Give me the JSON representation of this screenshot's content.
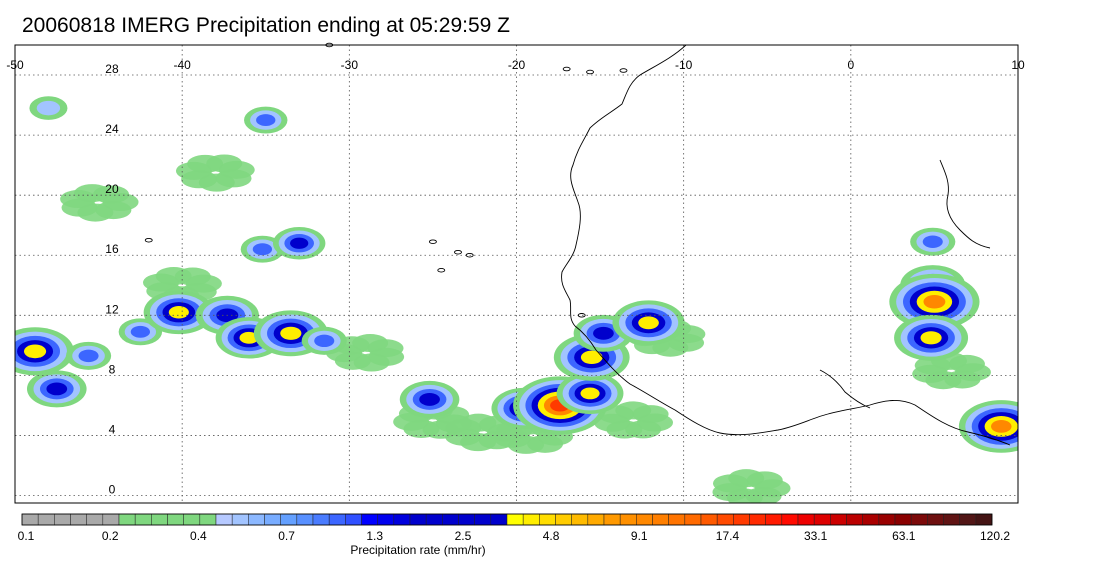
{
  "title": "20060818 IMERG Precipitation ending at 05:29:59 Z",
  "map": {
    "lon_range": [
      -50,
      10
    ],
    "lat_range": [
      -0.5,
      30
    ],
    "lon_ticks": [
      -50,
      -40,
      -30,
      -20,
      -10,
      0,
      10
    ],
    "lat_ticks": [
      0,
      4,
      8,
      12,
      16,
      20,
      24,
      28
    ],
    "grid": true,
    "coastline_color": "#000000",
    "rain_cells": [
      {
        "lon": -48.8,
        "lat": 9.6,
        "intensity": 3.2
      },
      {
        "lon": -47.5,
        "lat": 7.1,
        "intensity": 2.2
      },
      {
        "lon": -45.6,
        "lat": 9.3,
        "intensity": 1.4
      },
      {
        "lon": -42.5,
        "lat": 10.9,
        "intensity": 1.3
      },
      {
        "lon": -40.2,
        "lat": 12.2,
        "intensity": 2.8
      },
      {
        "lon": -37.3,
        "lat": 12.0,
        "intensity": 2.4
      },
      {
        "lon": -36.0,
        "lat": 10.5,
        "intensity": 2.6
      },
      {
        "lon": -33.5,
        "lat": 10.8,
        "intensity": 3.0
      },
      {
        "lon": -31.5,
        "lat": 10.3,
        "intensity": 1.4
      },
      {
        "lon": -35.2,
        "lat": 16.4,
        "intensity": 1.3
      },
      {
        "lon": -33.0,
        "lat": 16.8,
        "intensity": 1.8
      },
      {
        "lon": -35.0,
        "lat": 25.0,
        "intensity": 1.3
      },
      {
        "lon": -48.0,
        "lat": 25.8,
        "intensity": 1.0
      },
      {
        "lon": -25.2,
        "lat": 6.4,
        "intensity": 2.2
      },
      {
        "lon": -19.5,
        "lat": 5.8,
        "intensity": 2.6
      },
      {
        "lon": -17.4,
        "lat": 6.0,
        "intensity": 4.1
      },
      {
        "lon": -15.6,
        "lat": 6.8,
        "intensity": 2.6
      },
      {
        "lon": -15.5,
        "lat": 9.2,
        "intensity": 3.1
      },
      {
        "lon": -14.8,
        "lat": 10.8,
        "intensity": 2.2
      },
      {
        "lon": -12.1,
        "lat": 11.5,
        "intensity": 2.9
      },
      {
        "lon": 4.9,
        "lat": 16.9,
        "intensity": 1.4
      },
      {
        "lon": 4.9,
        "lat": 14.0,
        "intensity": 2.5
      },
      {
        "lon": 5.0,
        "lat": 12.9,
        "intensity": 3.9
      },
      {
        "lon": 4.8,
        "lat": 10.5,
        "intensity": 3.0
      },
      {
        "lon": 9.0,
        "lat": 4.6,
        "intensity": 3.6
      }
    ],
    "light_rain_areas": [
      {
        "lon": -22,
        "lat": 4.2,
        "intensity": 0.4
      },
      {
        "lon": -19,
        "lat": 4.0,
        "intensity": 0.25
      },
      {
        "lon": -13,
        "lat": 5.0,
        "intensity": 0.25
      },
      {
        "lon": -25,
        "lat": 5.0,
        "intensity": 0.35
      },
      {
        "lon": -29,
        "lat": 9.5,
        "intensity": 0.4
      },
      {
        "lon": -11,
        "lat": 10.5,
        "intensity": 0.4
      },
      {
        "lon": -38,
        "lat": 21.5,
        "intensity": 0.35
      },
      {
        "lon": -40,
        "lat": 14.0,
        "intensity": 0.35
      },
      {
        "lon": -45,
        "lat": 19.5,
        "intensity": 0.35
      },
      {
        "lon": -6,
        "lat": 0.5,
        "intensity": 0.3
      },
      {
        "lon": 6,
        "lat": 8.3,
        "intensity": 0.35
      }
    ]
  },
  "colorbar": {
    "title": "Precipitation rate (mm/hr)",
    "labels": [
      "0.1",
      "0.2",
      "0.4",
      "0.7",
      "1.3",
      "2.5",
      "4.8",
      "9.1",
      "17.4",
      "33.1",
      "63.1",
      "120.2"
    ],
    "colors": [
      "#a9a9a9",
      "#a9a9a9",
      "#a9a9a9",
      "#a9a9a9",
      "#a9a9a9",
      "#a9a9a9",
      "#7fd77f",
      "#7fd77f",
      "#7fd77f",
      "#7fd77f",
      "#7fd77f",
      "#7fd77f",
      "#b6c9ff",
      "#a2c4ff",
      "#8cb8ff",
      "#78acff",
      "#64a0ff",
      "#5890ff",
      "#4a7cff",
      "#3c66ff",
      "#3050ff",
      "#0000ff",
      "#0000ee",
      "#0000dd",
      "#0000cc",
      "#0000cc",
      "#0000cc",
      "#0000cc",
      "#0000cc",
      "#0000cc",
      "#ffff00",
      "#ffee00",
      "#ffdd00",
      "#ffcc00",
      "#ffbb00",
      "#ffaa00",
      "#ff9900",
      "#ff9000",
      "#ff8800",
      "#ff7f00",
      "#ff7400",
      "#ff6a00",
      "#ff5a00",
      "#ff4a00",
      "#ff3a00",
      "#ff2a00",
      "#ff1a00",
      "#ff0a00",
      "#ee0000",
      "#dd0000",
      "#cc0000",
      "#bb0000",
      "#aa0000",
      "#990000",
      "#8a0000",
      "#7c0a0a",
      "#6e1010",
      "#601414",
      "#521616",
      "#441414"
    ]
  }
}
